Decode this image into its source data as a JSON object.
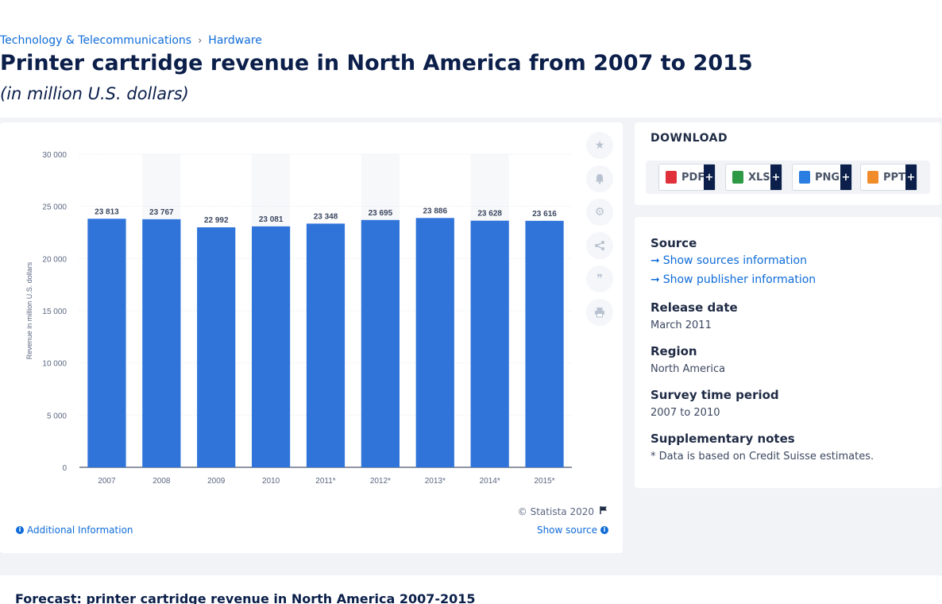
{
  "breadcrumb": {
    "level1": "Technology & Telecommunications",
    "separator": "›",
    "level2": "Hardware"
  },
  "page": {
    "title": "Printer cartridge revenue in North America from 2007 to 2015",
    "subtitle": "(in million U.S. dollars)"
  },
  "chart_data": {
    "type": "bar",
    "categories": [
      "2007",
      "2008",
      "2009",
      "2010",
      "2011*",
      "2012*",
      "2013*",
      "2014*",
      "2015*"
    ],
    "values": [
      23813,
      23767,
      22992,
      23081,
      23348,
      23695,
      23886,
      23628,
      23616
    ],
    "value_labels": [
      "23 813",
      "23 767",
      "22 992",
      "23 081",
      "23 348",
      "23 695",
      "23 886",
      "23 628",
      "23 616"
    ],
    "ylabel": "Revenue in million U.S. dollars",
    "xlabel": "",
    "ylim": [
      0,
      30000
    ],
    "yticks": [
      0,
      5000,
      10000,
      15000,
      20000,
      25000,
      30000
    ],
    "ytick_labels": [
      "0",
      "5 000",
      "10 000",
      "15 000",
      "20 000",
      "25 000",
      "30 000"
    ],
    "bar_color": "#3074da",
    "grid": true
  },
  "chart_footer": {
    "copyright": "© Statista 2020",
    "additional_info": "Additional Information",
    "show_source": "Show source"
  },
  "tools": [
    "star-icon",
    "bell-icon",
    "gear-icon",
    "share-icon",
    "quote-icon",
    "print-icon"
  ],
  "download": {
    "title": "DOWNLOAD",
    "buttons": [
      {
        "label": "PDF",
        "color": "#e0303a"
      },
      {
        "label": "XLS",
        "color": "#2e9a46"
      },
      {
        "label": "PNG",
        "color": "#2a7de1"
      },
      {
        "label": "PPT",
        "color": "#f08c2a"
      }
    ],
    "plus": "+"
  },
  "meta": {
    "source_heading": "Source",
    "show_sources": "Show sources information",
    "show_publisher": "Show publisher information",
    "release_heading": "Release date",
    "release_value": "March 2011",
    "region_heading": "Region",
    "region_value": "North America",
    "survey_heading": "Survey time period",
    "survey_value": "2007 to 2010",
    "notes_heading": "Supplementary notes",
    "notes_value": "* Data is based on Credit Suisse estimates."
  },
  "bottom": {
    "title": "Forecast: printer cartridge revenue in North America 2007-2015"
  }
}
